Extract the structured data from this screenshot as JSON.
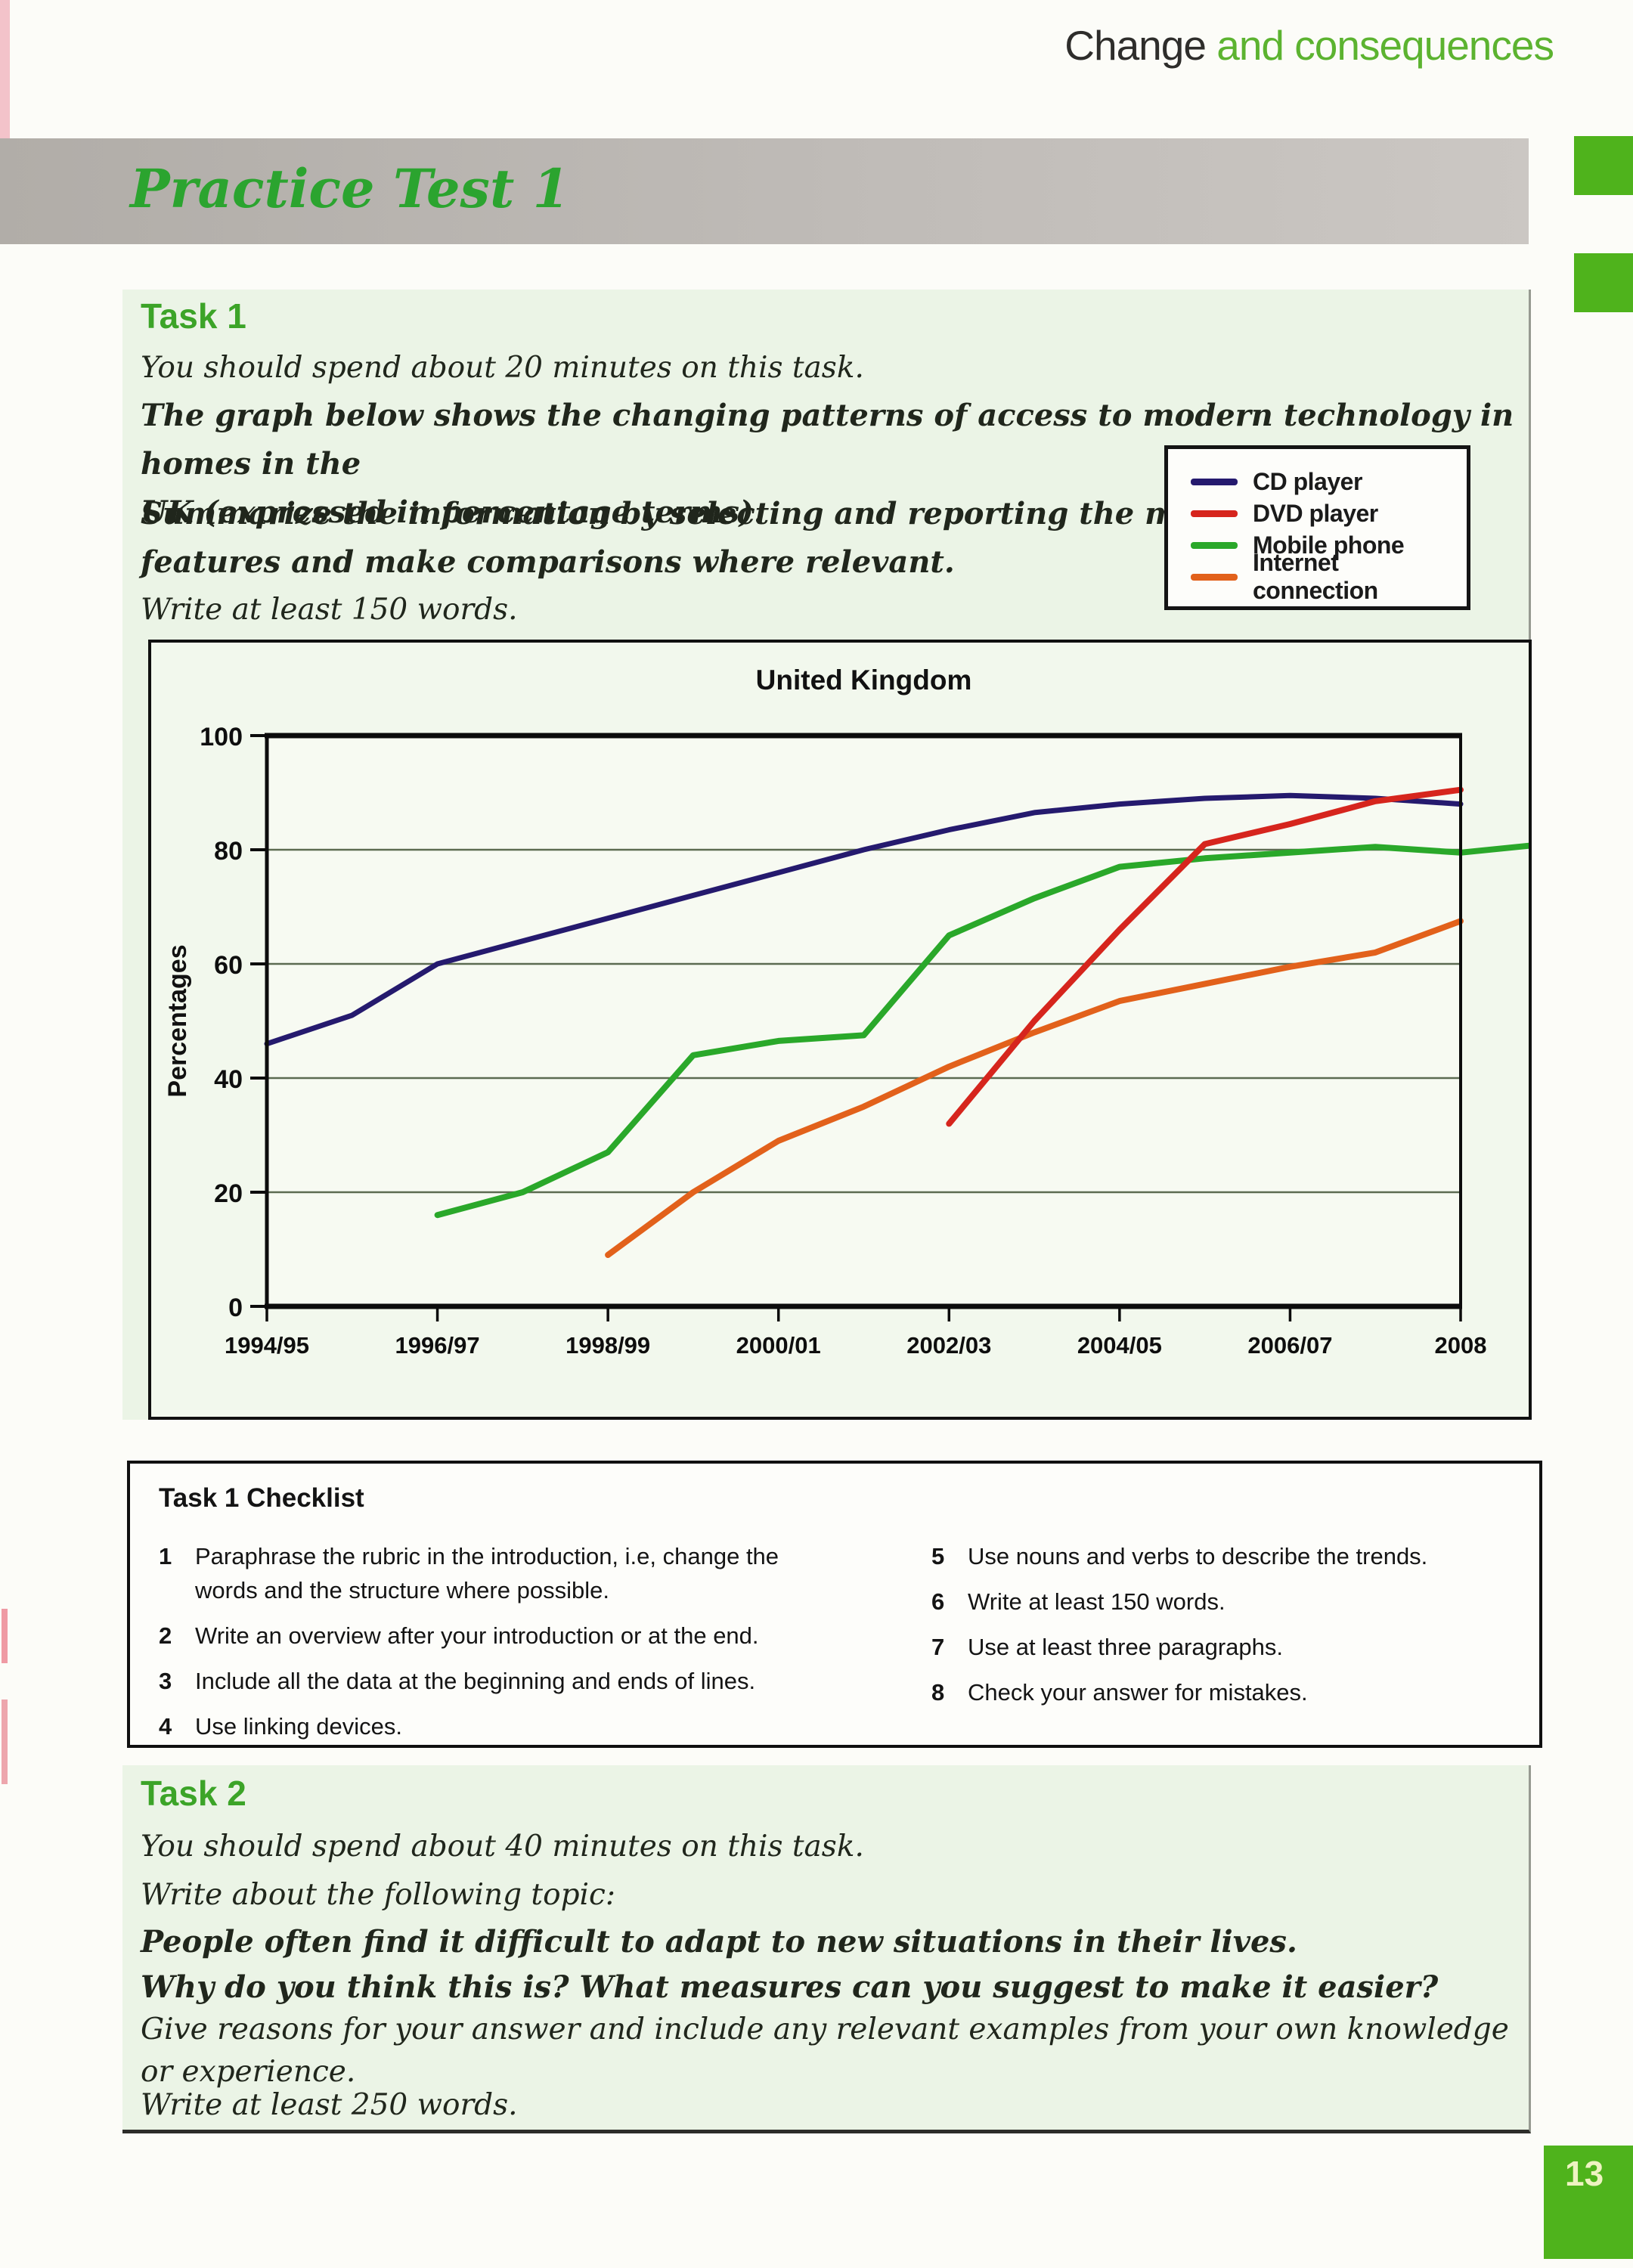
{
  "header": {
    "title_black": "Change",
    "title_green": "and consequences"
  },
  "banner": {
    "title": "Practice Test 1"
  },
  "task1": {
    "heading": "Task 1",
    "time_note": "You should spend about 20 minutes on this task.",
    "rubric": "The graph below shows the changing patterns of access to modern technology in homes in the\nUK (expressed in percentage terms).",
    "instruction": "Summarize the information by selecting and reporting the main\nfeatures and make comparisons where relevant.",
    "length_note": "Write at least 150 words."
  },
  "chart_data": {
    "type": "line",
    "title": "United Kingdom",
    "ylabel": "Percentages",
    "ylim": [
      0,
      100
    ],
    "yticks": [
      0,
      20,
      40,
      60,
      80,
      100
    ],
    "grid": "horizontal at 20,40,60,80",
    "x_tick_labels": [
      "1994/95",
      "1996/97",
      "1998/99",
      "2000/01",
      "2002/03",
      "2004/05",
      "2006/07",
      "2008"
    ],
    "x_note": "15 yearly points from 1994/95 to 2008; labels shown every second point",
    "legend_position": "outside top-right",
    "series": [
      {
        "name": "CD player",
        "color": "#251a6e",
        "start_index": 0,
        "values": [
          46,
          51,
          60,
          64,
          68,
          72,
          76,
          80,
          83.5,
          86.5,
          88,
          89,
          89.5,
          89,
          88
        ]
      },
      {
        "name": "DVD player",
        "color": "#d6251d",
        "start_index": 8,
        "values": [
          32,
          50,
          66,
          81,
          84.5,
          88.5,
          90.5
        ]
      },
      {
        "name": "Mobile phone",
        "color": "#2aa82a",
        "start_index": 2,
        "values": [
          16,
          20,
          27,
          44,
          46.5,
          47.5,
          65,
          71.5,
          77,
          78.5,
          79.5,
          80.5,
          79.5,
          81
        ]
      },
      {
        "name": "Internet connection",
        "color": "#e2611b",
        "start_index": 4,
        "values": [
          9,
          20,
          29,
          35,
          42,
          48,
          53.5,
          56.5,
          59.5,
          62,
          67.5
        ]
      }
    ]
  },
  "checklist": {
    "heading": "Task 1 Checklist",
    "items": [
      {
        "num": "1",
        "text": "Paraphrase the rubric in the introduction, i.e, change the words and the structure where possible."
      },
      {
        "num": "2",
        "text": "Write an overview after your introduction or at the end."
      },
      {
        "num": "3",
        "text": "Include all the data at the beginning and ends of lines."
      },
      {
        "num": "4",
        "text": "Use linking devices."
      },
      {
        "num": "5",
        "text": "Use nouns and verbs to describe the trends."
      },
      {
        "num": "6",
        "text": "Write at least 150 words."
      },
      {
        "num": "7",
        "text": "Use at least three paragraphs."
      },
      {
        "num": "8",
        "text": "Check your answer for mistakes."
      }
    ]
  },
  "task2": {
    "heading": "Task 2",
    "time_note": "You should spend about 40 minutes on this task.",
    "topic_intro": "Write about the following topic:",
    "topic": "People often find it difficult to adapt to new situations in their lives.",
    "questions": "Why do you think this is? What measures can you suggest to make it easier?",
    "support_note": "Give reasons for your answer and include any relevant examples from your own knowledge\nor experience.",
    "length_note": "Write at least 250 words."
  },
  "page": {
    "number": "13"
  }
}
